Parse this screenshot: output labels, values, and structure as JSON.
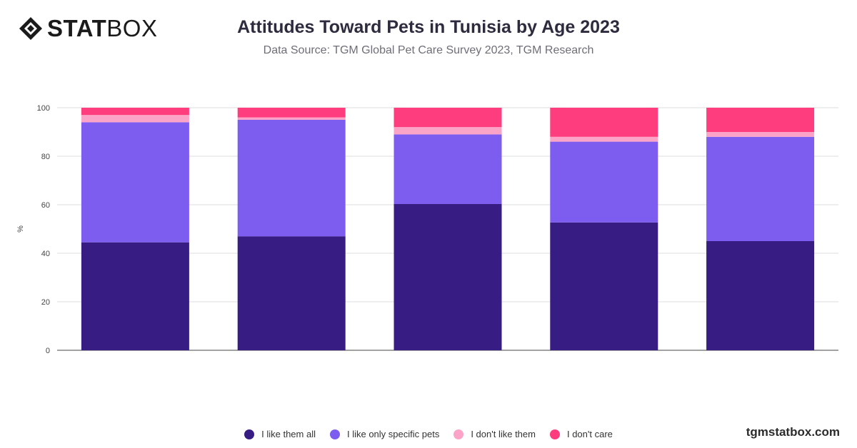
{
  "brand": {
    "logo_bold": "STAT",
    "logo_light": "BOX",
    "site": "tgmstatbox.com"
  },
  "chart_data": {
    "type": "bar",
    "stacked": true,
    "title": "Attitudes Toward Pets in Tunisia by Age 2023",
    "subtitle": "Data Source: TGM Global Pet Care Survey 2023, TGM Research",
    "ylabel": "%",
    "ylim": [
      0,
      100
    ],
    "yticks": [
      0,
      20,
      40,
      60,
      80,
      100
    ],
    "grid": true,
    "legend_position": "bottom",
    "categories": [
      "",
      "",
      "",
      "",
      ""
    ],
    "series": [
      {
        "name": "I like them all",
        "color": "#371d83",
        "values": [
          44.5,
          47,
          60.3,
          52.7,
          45
        ]
      },
      {
        "name": "I like only specific pets",
        "color": "#7d5cf0",
        "values": [
          49.5,
          48,
          28.7,
          33.3,
          43
        ]
      },
      {
        "name": "I don't like them",
        "color": "#fba4c7",
        "values": [
          3,
          1,
          3,
          2,
          2
        ]
      },
      {
        "name": "I don't care",
        "color": "#fd3d7d",
        "values": [
          3,
          4,
          8,
          12,
          10
        ]
      }
    ]
  }
}
